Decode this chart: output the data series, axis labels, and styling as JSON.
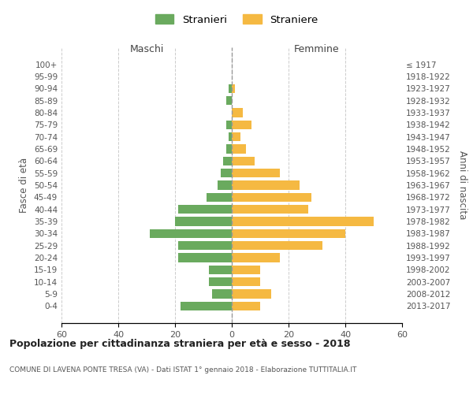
{
  "age_groups": [
    "0-4",
    "5-9",
    "10-14",
    "15-19",
    "20-24",
    "25-29",
    "30-34",
    "35-39",
    "40-44",
    "45-49",
    "50-54",
    "55-59",
    "60-64",
    "65-69",
    "70-74",
    "75-79",
    "80-84",
    "85-89",
    "90-94",
    "95-99",
    "100+"
  ],
  "birth_years": [
    "2013-2017",
    "2008-2012",
    "2003-2007",
    "1998-2002",
    "1993-1997",
    "1988-1992",
    "1983-1987",
    "1978-1982",
    "1973-1977",
    "1968-1972",
    "1963-1967",
    "1958-1962",
    "1953-1957",
    "1948-1952",
    "1943-1947",
    "1938-1942",
    "1933-1937",
    "1928-1932",
    "1923-1927",
    "1918-1922",
    "≤ 1917"
  ],
  "males": [
    18,
    7,
    8,
    8,
    19,
    19,
    29,
    20,
    19,
    9,
    5,
    4,
    3,
    2,
    1,
    2,
    0,
    2,
    1,
    0,
    0
  ],
  "females": [
    10,
    14,
    10,
    10,
    17,
    32,
    40,
    50,
    27,
    28,
    24,
    17,
    8,
    5,
    3,
    7,
    4,
    0,
    1,
    0,
    0
  ],
  "male_color": "#6aaa5e",
  "female_color": "#f5b942",
  "title": "Popolazione per cittadinanza straniera per età e sesso - 2018",
  "subtitle": "COMUNE DI LAVENA PONTE TRESA (VA) - Dati ISTAT 1° gennaio 2018 - Elaborazione TUTTITALIA.IT",
  "xlabel_left": "Maschi",
  "xlabel_right": "Femmine",
  "ylabel": "Fasce di età",
  "ylabel_right": "Anni di nascita",
  "legend_male": "Stranieri",
  "legend_female": "Straniere",
  "xlim": 60,
  "background_color": "#ffffff",
  "grid_color": "#cccccc"
}
